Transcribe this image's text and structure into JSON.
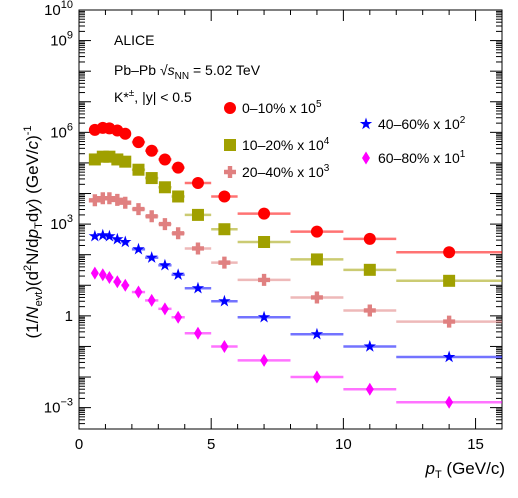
{
  "chart_data": {
    "type": "scatter",
    "x_scale": "linear",
    "y_scale": "log",
    "xlim": [
      0,
      16
    ],
    "ylim": [
      0.0002,
      10000000000
    ],
    "x_ticks": [
      0,
      5,
      10,
      15
    ],
    "x_tick_labels": [
      "0",
      "5",
      "10",
      "15"
    ],
    "y_major_ticks": [
      {
        "value": 0.001,
        "base": "10",
        "exp": "−3"
      },
      {
        "value": 1,
        "base": "1",
        "exp": ""
      },
      {
        "value": 1000,
        "base": "10",
        "exp": "3"
      },
      {
        "value": 1000000,
        "base": "10",
        "exp": "6"
      },
      {
        "value": 1000000000,
        "base": "10",
        "exp": "9"
      },
      {
        "value": 10000000000,
        "base": "10",
        "exp": "10"
      }
    ],
    "xlabel": {
      "main": "p",
      "sub": "T",
      "unit": " (GeV/c)"
    },
    "ylabel": "(1/N_evt)(d²N/dp_T dy) (GeV/c)^-1",
    "ylabel_parts": {
      "p1": "(1/",
      "n": "N",
      "nsub": "evt",
      "p2": ")(d",
      "sup2": "2",
      "p3": "N/d",
      "p": "p",
      "psub": "T",
      "p4": "d",
      "y": "y",
      "p5": ") (GeV/",
      "c": "c",
      "p6": ")",
      "supm1": "-1"
    },
    "annotations": {
      "experiment": "ALICE",
      "system_pre": "Pb–Pb ",
      "system_sqrt": "√",
      "system_s": "s",
      "system_sub": "NN",
      "system_post": " = 5.02 TeV",
      "particle": "K*",
      "particle_sup": "±",
      "rapidity": ", |y| < 0.5"
    },
    "series": [
      {
        "name": "0–10% x 10",
        "name_sup": "5",
        "color": "#ff0000",
        "marker": "circle",
        "x": [
          0.6,
          0.9,
          1.15,
          1.45,
          1.75,
          2.25,
          2.75,
          3.25,
          3.75,
          4.5,
          5.5,
          7.0,
          9.0,
          11.0,
          14.0
        ],
        "xerr": [
          0.1,
          0.1,
          0.15,
          0.15,
          0.15,
          0.25,
          0.25,
          0.25,
          0.25,
          0.5,
          0.5,
          1.0,
          1.0,
          1.0,
          2.0
        ],
        "y": [
          1200000,
          1400000,
          1350000,
          1150000,
          900000,
          480000,
          250000,
          130000,
          70000,
          22000,
          8000,
          2200,
          570,
          330,
          120
        ]
      },
      {
        "name": "10–20% x 10",
        "name_sup": "4",
        "color": "#a0a000",
        "marker": "square",
        "x": [
          0.6,
          0.9,
          1.15,
          1.45,
          1.75,
          2.25,
          2.75,
          3.25,
          3.75,
          4.5,
          5.5,
          7.0,
          9.0,
          11.0,
          14.0
        ],
        "xerr": [
          0.1,
          0.1,
          0.15,
          0.15,
          0.15,
          0.25,
          0.25,
          0.25,
          0.25,
          0.5,
          0.5,
          1.0,
          1.0,
          1.0,
          2.0
        ],
        "y": [
          130000,
          160000,
          160000,
          130000,
          110000,
          60000,
          32000,
          16000,
          8000,
          2000,
          680,
          260,
          70,
          32,
          14
        ]
      },
      {
        "name": "20–40% x 10",
        "name_sup": "3",
        "color": "#e08080",
        "marker": "cross",
        "x": [
          0.6,
          0.9,
          1.15,
          1.45,
          1.75,
          2.25,
          2.75,
          3.25,
          3.75,
          4.5,
          5.5,
          7.0,
          9.0,
          11.0,
          14.0
        ],
        "xerr": [
          0.1,
          0.1,
          0.15,
          0.15,
          0.15,
          0.25,
          0.25,
          0.25,
          0.25,
          0.5,
          0.5,
          1.0,
          1.0,
          1.0,
          2.0
        ],
        "y": [
          6000,
          7000,
          7000,
          6200,
          5000,
          3100,
          1800,
          1000,
          500,
          160,
          55,
          15,
          4,
          1.5,
          0.65
        ]
      },
      {
        "name": "40–60% x 10",
        "name_sup": "2",
        "color": "#0000ff",
        "marker": "star",
        "x": [
          0.6,
          0.9,
          1.15,
          1.45,
          1.75,
          2.25,
          2.75,
          3.25,
          3.75,
          4.5,
          5.5,
          7.0,
          9.0,
          11.0,
          14.0
        ],
        "xerr": [
          0.1,
          0.1,
          0.15,
          0.15,
          0.15,
          0.25,
          0.25,
          0.25,
          0.25,
          0.5,
          0.5,
          1.0,
          1.0,
          1.0,
          2.0
        ],
        "y": [
          400,
          430,
          400,
          320,
          260,
          150,
          80,
          45,
          22,
          8,
          3,
          0.9,
          0.25,
          0.1,
          0.045
        ]
      },
      {
        "name": "60–80% x 10",
        "name_sup": "1",
        "color": "#ff00ff",
        "marker": "diamond",
        "x": [
          0.6,
          0.9,
          1.15,
          1.45,
          1.75,
          2.25,
          2.75,
          3.25,
          3.75,
          4.5,
          5.5,
          7.0,
          9.0,
          11.0,
          14.0
        ],
        "xerr": [
          0.1,
          0.1,
          0.15,
          0.15,
          0.15,
          0.25,
          0.25,
          0.25,
          0.25,
          0.5,
          0.5,
          1.0,
          1.0,
          1.0,
          2.0
        ],
        "y": [
          25,
          22,
          18,
          13,
          10,
          6,
          3.2,
          1.7,
          0.9,
          0.27,
          0.1,
          0.035,
          0.01,
          0.004,
          0.0015
        ]
      }
    ]
  }
}
